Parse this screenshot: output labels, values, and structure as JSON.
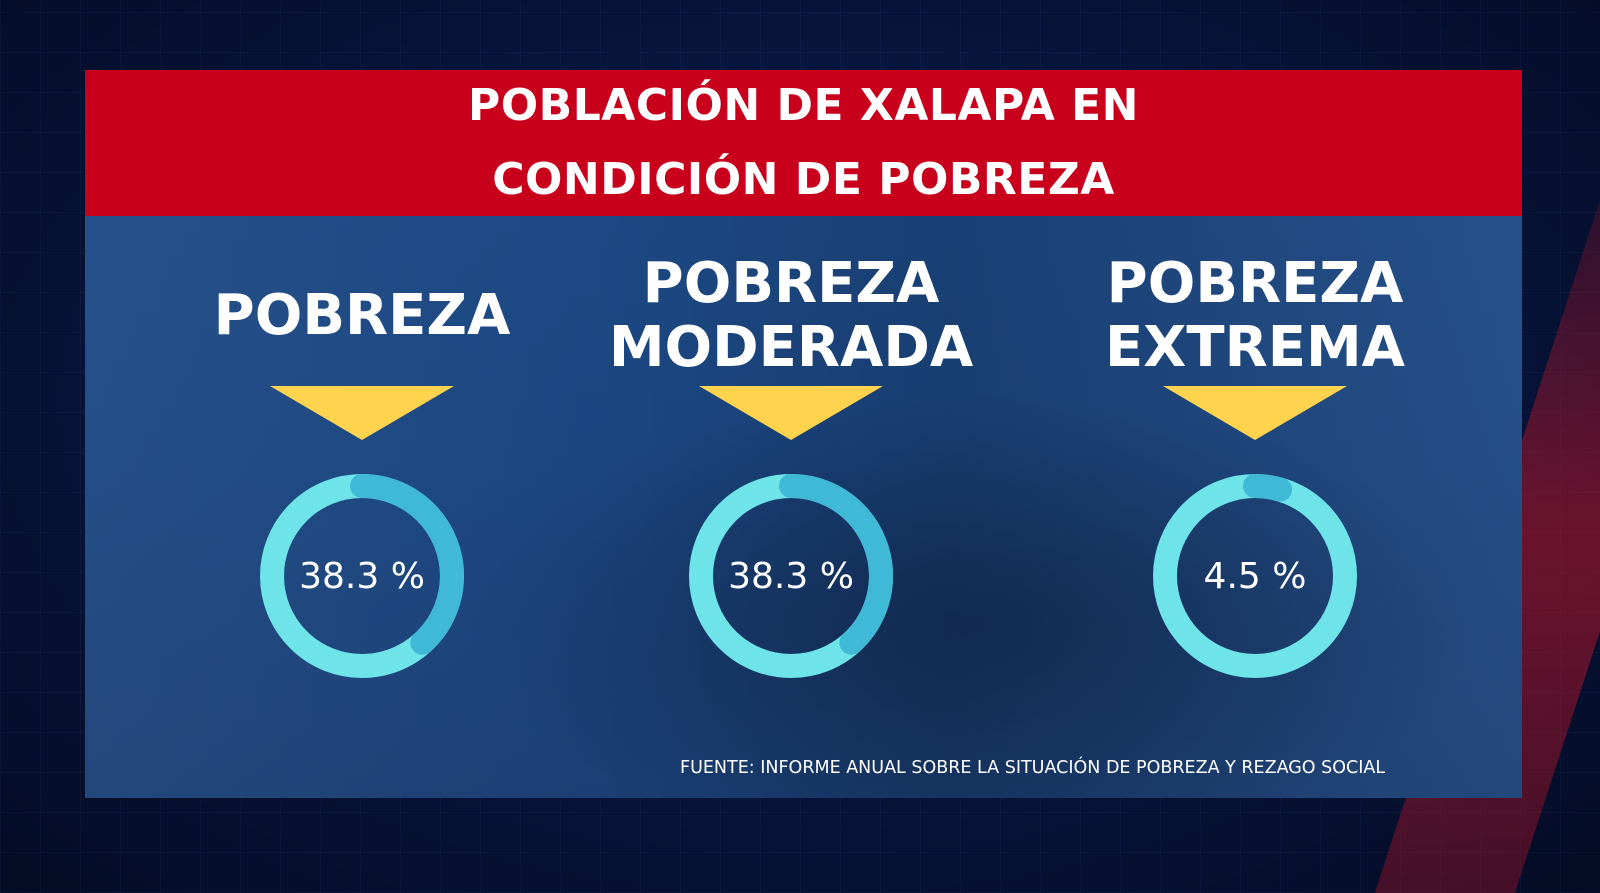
{
  "title": {
    "line1": "POBLACIÓN DE XALAPA EN",
    "line2": "CONDICIÓN DE POBREZA"
  },
  "colors": {
    "title_bar": "#c8001c",
    "panel": "#1d4a86",
    "arrow": "#ffd34d",
    "ring": "#6ee3e8",
    "ring_fill": "#40b9d6"
  },
  "chart_data": {
    "type": "pie",
    "style": "donut",
    "categories": [
      {
        "label_lines": [
          "POBREZA"
        ],
        "value": 38.3,
        "value_label": "38.3 %"
      },
      {
        "label_lines": [
          "POBREZA",
          "MODERADA"
        ],
        "value": 38.3,
        "value_label": "38.3 %"
      },
      {
        "label_lines": [
          "POBREZA",
          "EXTREMA"
        ],
        "value": 4.5,
        "value_label": "4.5 %"
      }
    ],
    "unit": "%"
  },
  "source": "FUENTE: INFORME ANUAL SOBRE LA SITUACIÓN DE POBREZA Y REZAGO SOCIAL"
}
